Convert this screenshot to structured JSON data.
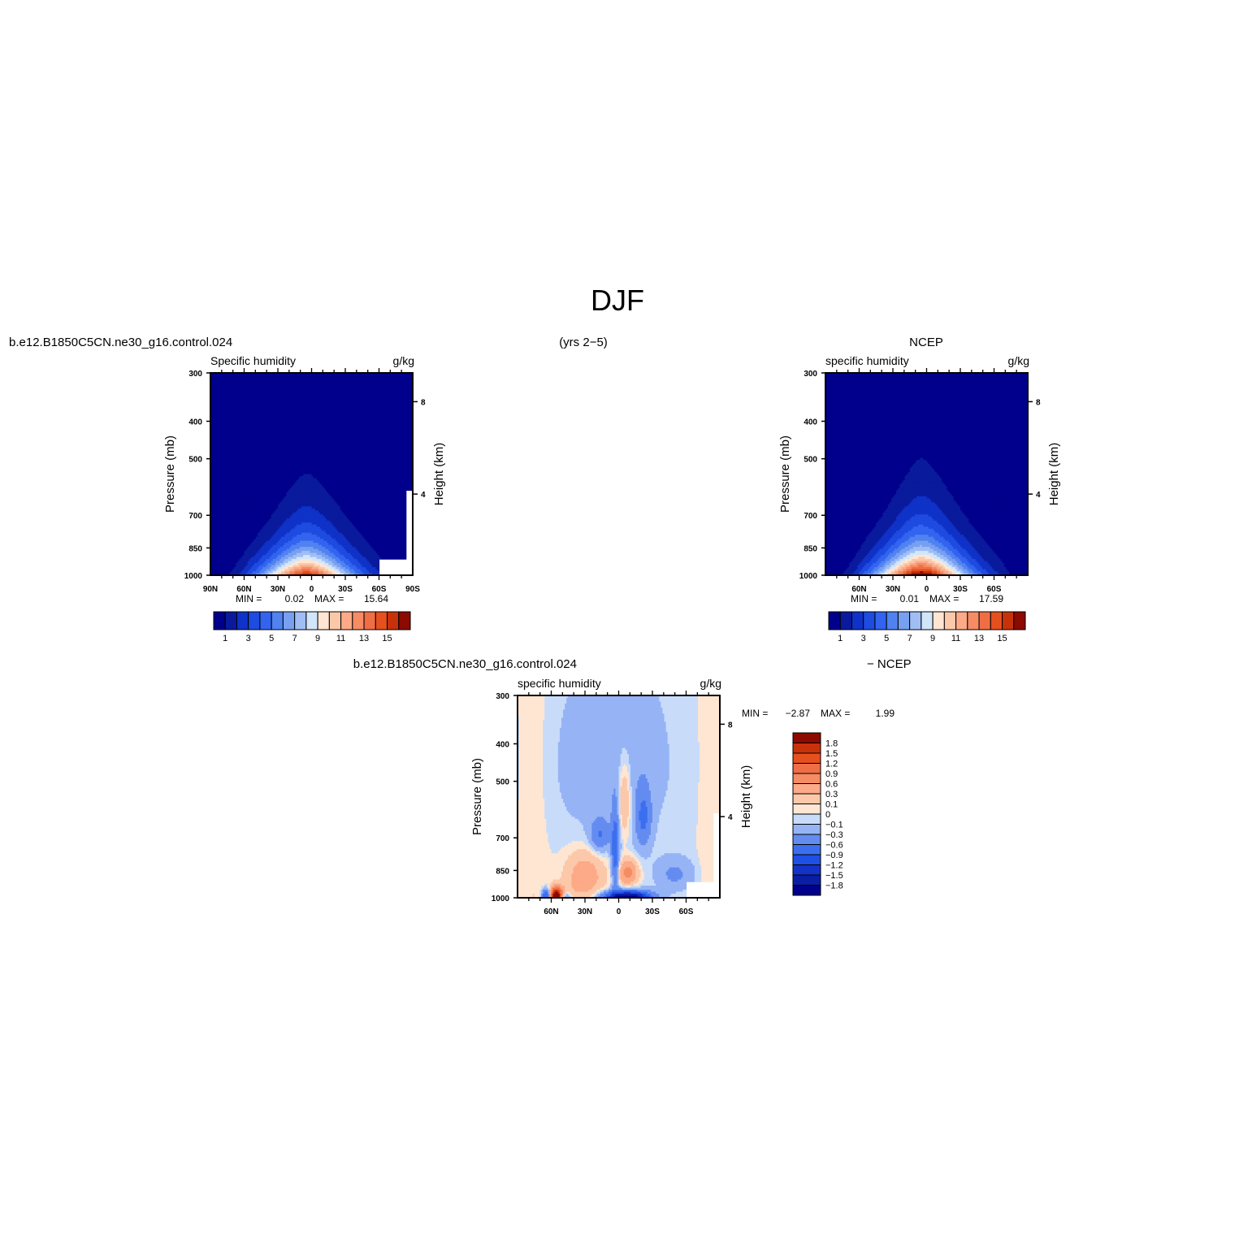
{
  "figure": {
    "title": "DJF",
    "case_name": "b.e12.B1850C5CN.ne30_g16.control.024",
    "years": "(yrs 2−5)",
    "obs_name": "NCEP"
  },
  "colors": {
    "abs_fill": [
      "#00008c",
      "#0a1a9c",
      "#0f32c8",
      "#1e4be0",
      "#3264f0",
      "#5082f0",
      "#78a0f0",
      "#a0bef5",
      "#d2e6fa",
      "#ffe6d2",
      "#fcc8aa",
      "#fcaa87",
      "#f58c64",
      "#f06e46",
      "#e6501e",
      "#c8320a",
      "#8c0a00"
    ],
    "diff_fill": [
      "#00008c",
      "#0a1ea5",
      "#1432c8",
      "#1e50e6",
      "#3c6ef0",
      "#648cf0",
      "#96b4f5",
      "#c8dcfa",
      "#ffe6d2",
      "#fcc8aa",
      "#fcaa87",
      "#f58c64",
      "#f06e46",
      "#e6501e",
      "#c8320a",
      "#8c0a00"
    ]
  },
  "chart_data": [
    {
      "id": "model",
      "type": "contour",
      "left_title": "b.e12.B1850C5CN.ne30_g16.control.024",
      "var_label": "Specific humidity",
      "units": "g/kg",
      "ylabel": "Pressure (mb)",
      "ylabel_right": "Height (km)",
      "pressure_ticks": [
        "300",
        "400",
        "500",
        "700",
        "850",
        "1000"
      ],
      "height_ticks": [
        "8",
        "4"
      ],
      "lat_ticks": [
        "90N",
        "60N",
        "30N",
        "0",
        "30S",
        "60S",
        "90S"
      ],
      "min_label": "MIN =",
      "min_value": "0.02",
      "max_label": "MAX =",
      "max_value": "15.64",
      "colorbar_labels": [
        "1",
        "3",
        "5",
        "7",
        "9",
        "11",
        "13",
        "15"
      ],
      "peak_g_per_kg": 15.64,
      "masked_region": "Antarctic surface (60S–90S, below ~900 mb)"
    },
    {
      "id": "obs",
      "type": "contour",
      "left_title": "",
      "center_title": "NCEP",
      "var_label": "specific humidity",
      "units": "g/kg",
      "ylabel": "Pressure (mb)",
      "ylabel_right": "Height (km)",
      "pressure_ticks": [
        "300",
        "400",
        "500",
        "700",
        "850",
        "1000"
      ],
      "height_ticks": [
        "8",
        "4"
      ],
      "lat_ticks": [
        "60N",
        "30N",
        "0",
        "30S",
        "60S"
      ],
      "min_label": "MIN =",
      "min_value": "0.01",
      "max_label": "MAX =",
      "max_value": "17.59",
      "colorbar_labels": [
        "1",
        "3",
        "5",
        "7",
        "9",
        "11",
        "13",
        "15"
      ],
      "peak_g_per_kg": 17.59
    },
    {
      "id": "diff",
      "type": "contour",
      "left_title": "b.e12.B1850C5CN.ne30_g16.control.024",
      "right_title": "− NCEP",
      "var_label": "specific humidity",
      "units": "g/kg",
      "ylabel": "Pressure (mb)",
      "ylabel_right": "Height (km)",
      "pressure_ticks": [
        "300",
        "400",
        "500",
        "700",
        "850",
        "1000"
      ],
      "height_ticks": [
        "8",
        "4"
      ],
      "lat_ticks": [
        "60N",
        "30N",
        "0",
        "30S",
        "60S"
      ],
      "min_label": "MIN =",
      "min_value": "−2.87",
      "max_label": "MAX =",
      "max_value": "1.99",
      "colorbar_labels": [
        "1.8",
        "1.5",
        "1.2",
        "0.9",
        "0.6",
        "0.3",
        "0.1",
        "0",
        "−0.1",
        "−0.3",
        "−0.6",
        "−0.9",
        "−1.2",
        "−1.5",
        "−1.8"
      ],
      "levels": [
        -1.8,
        -1.5,
        -1.2,
        -0.9,
        -0.6,
        -0.3,
        -0.1,
        0,
        0.1,
        0.3,
        0.6,
        0.9,
        1.2,
        1.5,
        1.8
      ]
    }
  ]
}
